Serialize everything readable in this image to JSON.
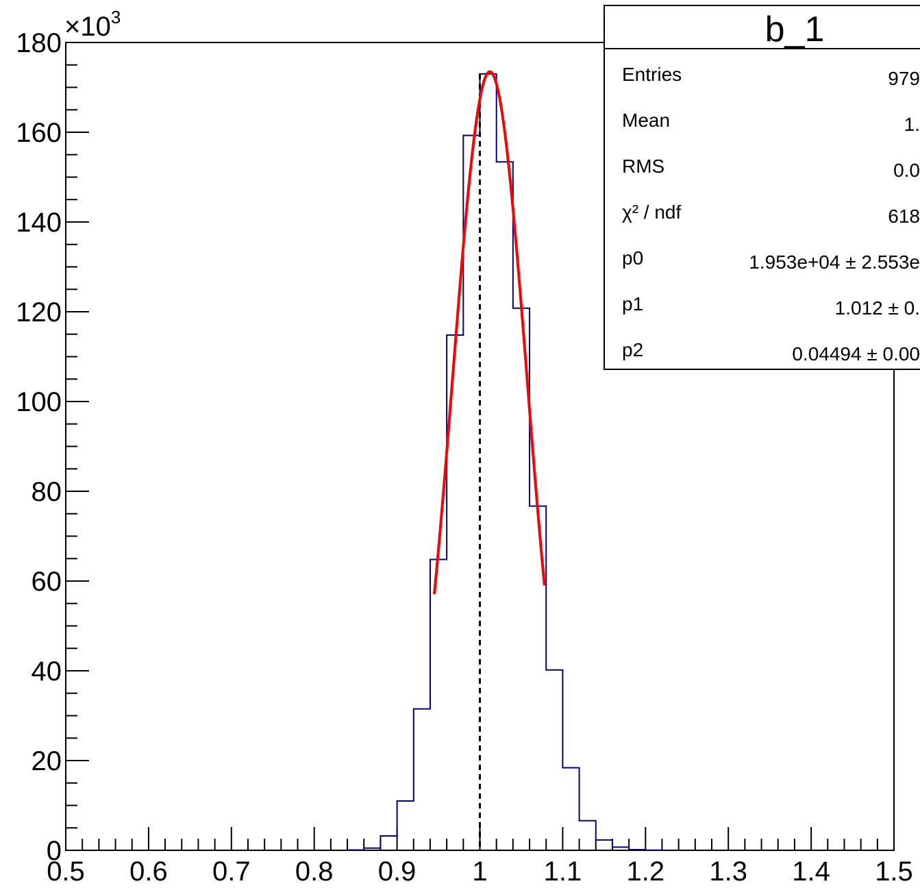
{
  "chart_data": {
    "type": "bar",
    "title": "",
    "xlabel": "",
    "ylabel": "",
    "x_range": [
      0.5,
      1.5
    ],
    "y_range": [
      0,
      180000
    ],
    "y_multiplier_label": "×10",
    "y_multiplier_exponent": "3",
    "x_ticks": [
      "0.5",
      "0.6",
      "0.7",
      "0.8",
      "0.9",
      "1",
      "1.1",
      "1.2",
      "1.3",
      "1.4",
      "1.5"
    ],
    "y_ticks": [
      "0",
      "20",
      "40",
      "60",
      "80",
      "100",
      "120",
      "140",
      "160",
      "180"
    ],
    "bin_width": 0.02,
    "histogram": {
      "name": "",
      "color": "#000080",
      "bin_edges_start": 0.84,
      "values": [
        80,
        500,
        3200,
        11000,
        31500,
        64800,
        114800,
        159300,
        173000,
        153400,
        120800,
        76700,
        40200,
        18400,
        6600,
        2300,
        700,
        150,
        40
      ]
    },
    "fit": {
      "name": "",
      "color": "#ff0000",
      "x_min": 0.945,
      "x_max": 1.078
    },
    "reference_line": {
      "x": 1.0,
      "style": "dashed",
      "color": "#000000"
    },
    "grid": false,
    "legend": "none"
  },
  "stats_box": {
    "title": "b_1",
    "rows": [
      {
        "label": "Entries",
        "value": "979"
      },
      {
        "label": "Mean",
        "value": "1."
      },
      {
        "label": "RMS",
        "value": "0.0"
      },
      {
        "label": "χ² / ndf",
        "value": "618"
      },
      {
        "label": "p0",
        "value": "1.953e+04 ± 2.553e"
      },
      {
        "label": "p1",
        "value": "1.012 ± 0."
      },
      {
        "label": "p2",
        "value": "0.04494 ± 0.00"
      }
    ],
    "fit_params": {
      "p0": 19530,
      "p1": 1.012,
      "p2": 0.04494
    }
  }
}
